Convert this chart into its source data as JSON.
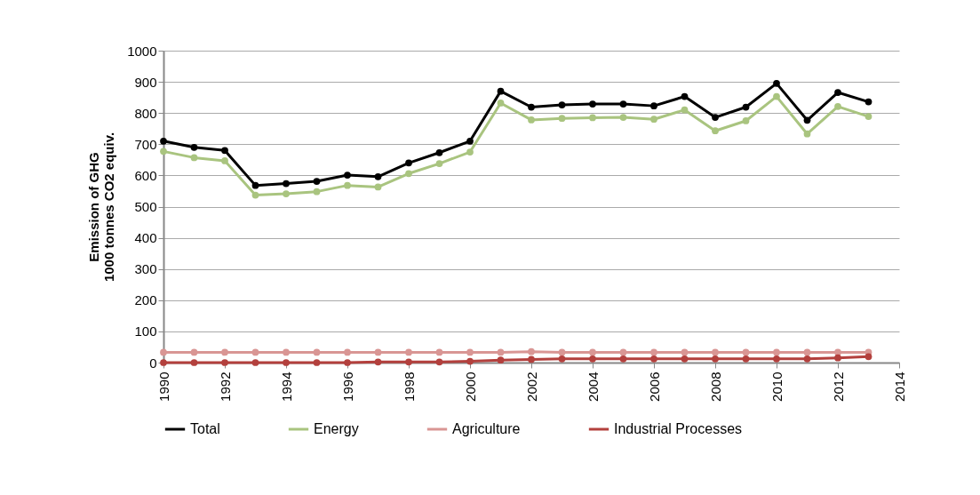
{
  "chart_data": {
    "type": "line",
    "ylabel": "Emission of GHG\n1000 tonnes CO2  equiv.",
    "x": [
      1990,
      1991,
      1992,
      1993,
      1994,
      1995,
      1996,
      1997,
      1998,
      1999,
      2000,
      2001,
      2002,
      2003,
      2004,
      2005,
      2006,
      2007,
      2008,
      2009,
      2010,
      2011,
      2012,
      2013
    ],
    "series": [
      {
        "name": "Total",
        "color": "#000000",
        "values": [
          710,
          690,
          680,
          568,
          574,
          581,
          601,
          596,
          640,
          673,
          710,
          870,
          819,
          826,
          829,
          829,
          823,
          853,
          786,
          819,
          895,
          777,
          866,
          836
        ]
      },
      {
        "name": "Energy",
        "color": "#a9c47f",
        "values": [
          677,
          657,
          647,
          537,
          541,
          548,
          568,
          563,
          606,
          638,
          675,
          832,
          778,
          783,
          785,
          786,
          780,
          810,
          743,
          775,
          853,
          733,
          821,
          789
        ]
      },
      {
        "name": "Agriculture",
        "color": "#d99694",
        "values": [
          33,
          33,
          33,
          33,
          33,
          33,
          33,
          33,
          33,
          33,
          33,
          33,
          35,
          33,
          33,
          33,
          33,
          33,
          33,
          33,
          33,
          33,
          33,
          33
        ]
      },
      {
        "name": "Industrial Processes",
        "color": "#b3403d",
        "values": [
          0,
          0,
          0,
          0,
          0,
          0,
          0,
          2,
          2,
          2,
          4,
          8,
          10,
          12,
          12,
          12,
          12,
          12,
          12,
          12,
          12,
          12,
          15,
          19
        ]
      }
    ],
    "xlim": [
      1990,
      2014
    ],
    "xticks": [
      1990,
      1992,
      1994,
      1996,
      1998,
      2000,
      2002,
      2004,
      2006,
      2008,
      2010,
      2012,
      2014
    ],
    "ylim": [
      0,
      1000
    ],
    "yticks": [
      0,
      100,
      200,
      300,
      400,
      500,
      600,
      700,
      800,
      900,
      1000
    ],
    "grid": "y",
    "legend": "bottom",
    "marker": "circle",
    "line_style": "solid"
  }
}
